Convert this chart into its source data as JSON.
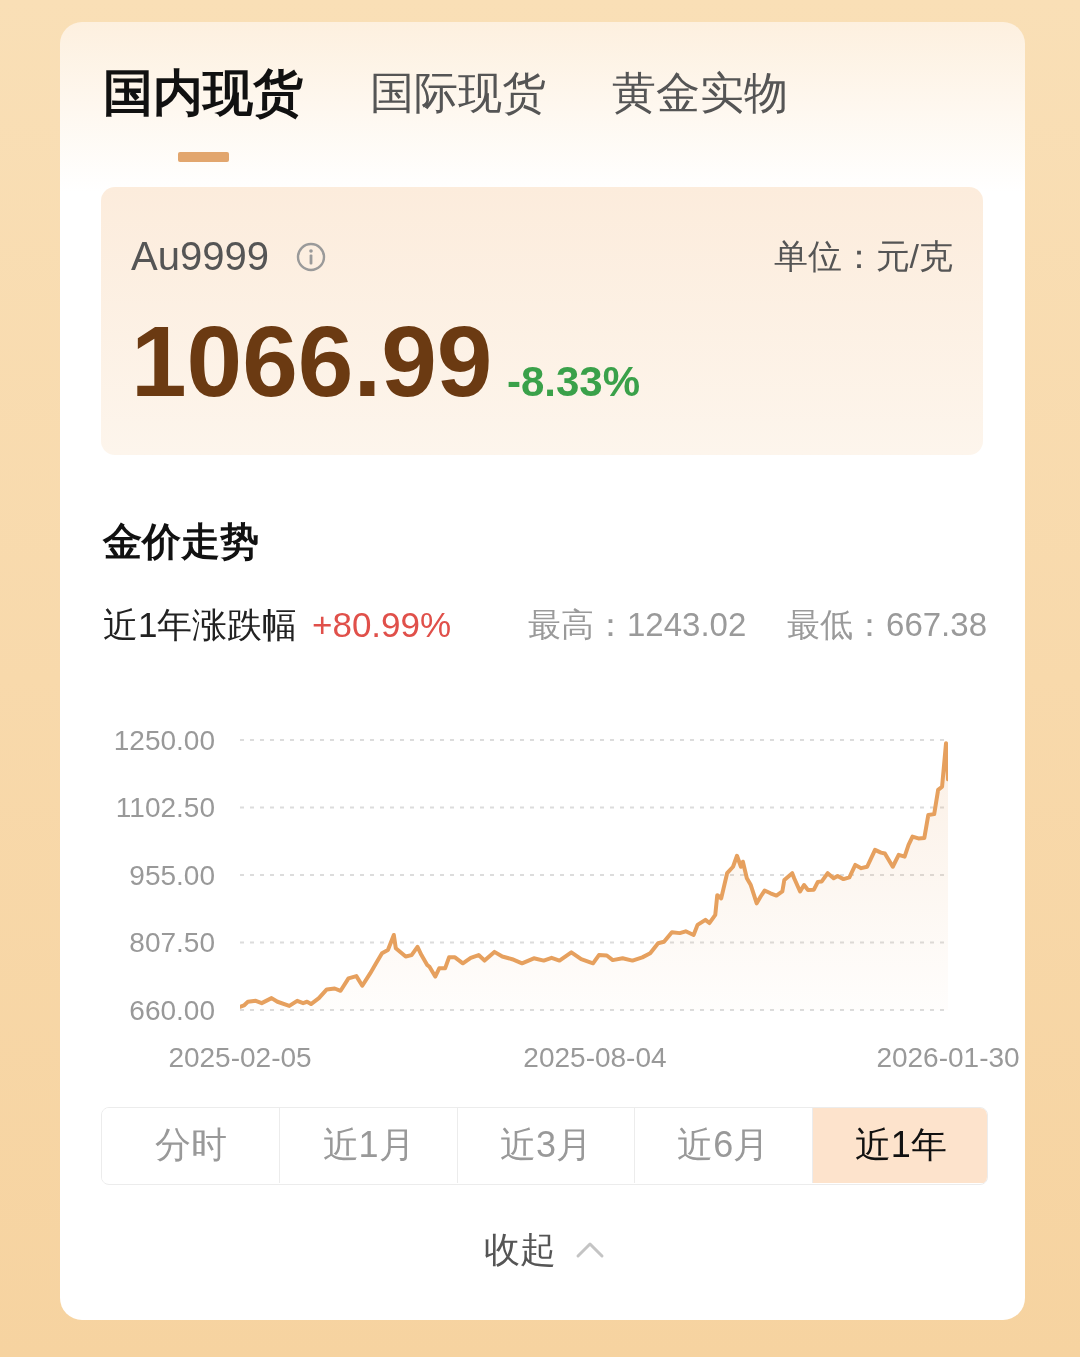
{
  "chart_data": [
    {
      "type": "other",
      "annotations": [
        "国内现货",
        "国际现货",
        "黄金实物",
        "Au9999",
        "单位：元/克",
        "1066.99",
        "-8.33%"
      ]
    },
    {
      "type": "area",
      "title": "金价走势",
      "annotations": [
        "近1年涨跌幅",
        "+80.99%",
        "最高：1243.02",
        "最低：667.38",
        "分时",
        "近1月",
        "近3月",
        "近6月",
        "近1年",
        "收起"
      ],
      "x": [
        "2025-02-05",
        "2025-02-07",
        "2025-02-09",
        "2025-02-13",
        "2025-02-16",
        "2025-02-21",
        "2025-02-24",
        "2025-03-02",
        "2025-03-06",
        "2025-03-09",
        "2025-03-11",
        "2025-03-13",
        "2025-03-17",
        "2025-03-21",
        "2025-03-25",
        "2025-03-28",
        "2025-04-01",
        "2025-04-05",
        "2025-04-08",
        "2025-04-12",
        "2025-04-15",
        "2025-04-18",
        "2025-04-21",
        "2025-04-24",
        "2025-04-25",
        "2025-04-30",
        "2025-05-03",
        "2025-05-06",
        "2025-05-08",
        "2025-05-11",
        "2025-05-12",
        "2025-05-15",
        "2025-05-17",
        "2025-05-20",
        "2025-05-22",
        "2025-05-25",
        "2025-05-29",
        "2025-06-02",
        "2025-06-06",
        "2025-06-09",
        "2025-06-14",
        "2025-06-18",
        "2025-06-23",
        "2025-06-28",
        "2025-07-04",
        "2025-07-09",
        "2025-07-13",
        "2025-07-17",
        "2025-07-23",
        "2025-07-28",
        "2025-08-03",
        "2025-08-06",
        "2025-08-10",
        "2025-08-13",
        "2025-08-18",
        "2025-08-23",
        "2025-08-28",
        "2025-09-01",
        "2025-09-05",
        "2025-09-08",
        "2025-09-12",
        "2025-09-16",
        "2025-09-19",
        "2025-09-23",
        "2025-09-25",
        "2025-09-29",
        "2025-10-01",
        "2025-10-04",
        "2025-10-05",
        "2025-10-07",
        "2025-10-10",
        "2025-10-13",
        "2025-10-15",
        "2025-10-17",
        "2025-10-18",
        "2025-10-20",
        "2025-10-22",
        "2025-10-25",
        "2025-10-27",
        "2025-10-29",
        "2025-11-01",
        "2025-11-04",
        "2025-11-07",
        "2025-11-08",
        "2025-11-12",
        "2025-11-13",
        "2025-11-16",
        "2025-11-18",
        "2025-11-20",
        "2025-11-23",
        "2025-11-25",
        "2025-11-27",
        "2025-11-30",
        "2025-12-03",
        "2025-12-05",
        "2025-12-08",
        "2025-12-11",
        "2025-12-14",
        "2025-12-17",
        "2025-12-20",
        "2025-12-24",
        "2025-12-27",
        "2025-12-29",
        "2026-01-02",
        "2026-01-05",
        "2026-01-08",
        "2026-01-10",
        "2026-01-12",
        "2026-01-15",
        "2026-01-18",
        "2026-01-20",
        "2026-01-23",
        "2026-01-25",
        "2026-01-27",
        "2026-01-29",
        "2026-01-30"
      ],
      "values": [
        667,
        670,
        678,
        680,
        675,
        686,
        678,
        669,
        680,
        675,
        678,
        673,
        686,
        705,
        707,
        702,
        729,
        734,
        713,
        740,
        762,
        784,
        791,
        824,
        795,
        777,
        780,
        798,
        780,
        758,
        755,
        733,
        751,
        751,
        775,
        775,
        762,
        774,
        780,
        768,
        787,
        777,
        771,
        762,
        773,
        768,
        774,
        768,
        786,
        771,
        762,
        780,
        779,
        769,
        773,
        768,
        775,
        784,
        806,
        809,
        830,
        828,
        832,
        824,
        846,
        857,
        850,
        868,
        911,
        904,
        959,
        973,
        997,
        973,
        984,
        948,
        933,
        893,
        908,
        921,
        915,
        910,
        919,
        944,
        959,
        948,
        919,
        933,
        922,
        923,
        940,
        941,
        959,
        948,
        953,
        946,
        950,
        977,
        970,
        973,
        1010,
        1004,
        1002,
        973,
        999,
        995,
        1021,
        1039,
        1035,
        1036,
        1086,
        1088,
        1141,
        1148,
        1243,
        1164
      ],
      "color": "#e6a05e",
      "xlim": [
        "2025-02-05",
        "2026-01-30"
      ],
      "xticks": [
        "2025-02-05",
        "2025-08-04",
        "2026-01-30"
      ],
      "ylim": [
        660,
        1250
      ],
      "yticks": [
        {
          "value": 660,
          "label": "660.00"
        },
        {
          "value": 807.5,
          "label": "807.50"
        },
        {
          "value": 955,
          "label": "955.00"
        },
        {
          "value": 1102.5,
          "label": "1102.50"
        },
        {
          "value": 1250,
          "label": "1250.00"
        }
      ],
      "grid": "y"
    }
  ]
}
